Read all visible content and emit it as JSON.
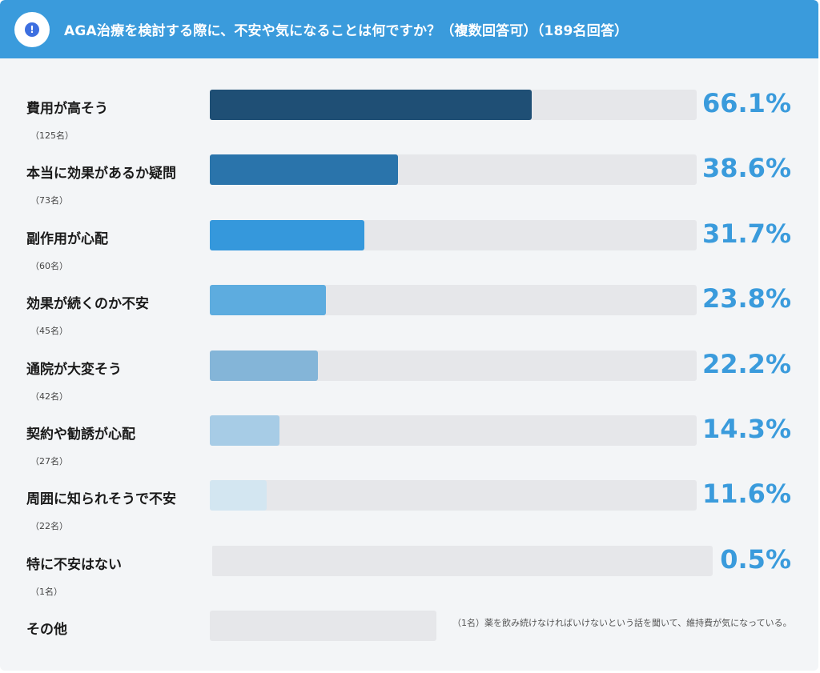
{
  "header": {
    "icon": "exclamation-icon",
    "badge_glyph": "!",
    "title": "AGA治療を検討する際に、不安や気になることは何ですか？（複数回答可）（189名回答）"
  },
  "colors": {
    "header": "#3a9bdc",
    "percent_text": "#3a9bdc",
    "track": "#e6e7ea",
    "bars": [
      "#1f4f75",
      "#2a74ab",
      "#3598dc",
      "#5dacdf",
      "#84b5d8",
      "#a7cce6",
      "#d3e6f1",
      "#e6e7ea",
      "#e6e7ea"
    ]
  },
  "chart_data": {
    "type": "bar",
    "orientation": "horizontal",
    "title": "AGA治療を検討する際に、不安や気になることは何ですか？（複数回答可）（189名回答）",
    "xlim": [
      0,
      100
    ],
    "grid": false,
    "legend": "none",
    "categories": [
      "費用が高そう",
      "本当に効果があるか疑問",
      "副作用が心配",
      "効果が続くのか不安",
      "通院が大変そう",
      "契約や勧誘が心配",
      "周囲に知られそうで不安",
      "特に不安はない",
      "その他"
    ],
    "values": [
      66.1,
      38.6,
      31.7,
      23.8,
      22.2,
      14.3,
      11.6,
      0.5,
      null
    ],
    "value_labels": [
      "66.1%",
      "38.6%",
      "31.7%",
      "23.8%",
      "22.2%",
      "14.3%",
      "11.6%",
      "0.5%",
      ""
    ],
    "counts": [
      "（125名）",
      "（73名）",
      "（60名）",
      "（45名）",
      "（42名）",
      "（27名）",
      "（22名）",
      "（1名）",
      ""
    ],
    "annotations": [
      "（1名）薬を飲み続けなければいけないという話を聞いて、維持費が気になっている。"
    ]
  }
}
